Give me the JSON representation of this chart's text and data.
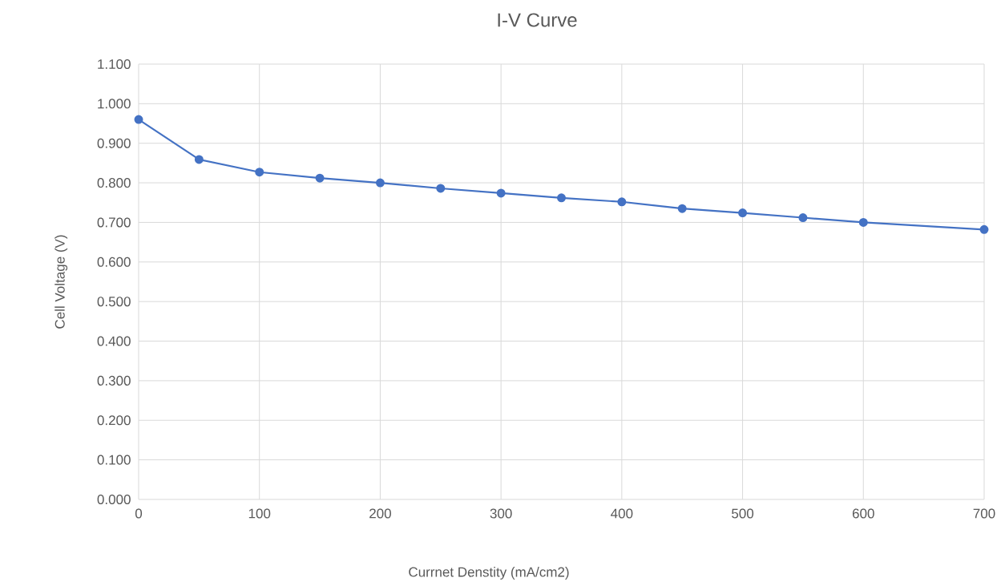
{
  "chart_data": {
    "type": "line",
    "title": "I-V Curve",
    "xlabel": "Currnet Denstity (mA/cm2)",
    "ylabel": "Cell Voltage (V)",
    "x": [
      0,
      50,
      100,
      150,
      200,
      250,
      300,
      350,
      400,
      450,
      500,
      550,
      600,
      700
    ],
    "values": [
      0.96,
      0.859,
      0.827,
      0.812,
      0.8,
      0.786,
      0.774,
      0.762,
      0.752,
      0.735,
      0.724,
      0.712,
      0.7,
      0.682
    ],
    "color": "#4472c4",
    "marker": "circle",
    "line_style": "solid",
    "grid": true,
    "xlim": [
      0,
      700
    ],
    "ylim": [
      0,
      1.1
    ],
    "xticks": [
      0,
      100,
      200,
      300,
      400,
      500,
      600,
      700
    ],
    "yticks": [
      {
        "value": 0,
        "label": "0.000"
      },
      {
        "value": 0.1,
        "label": "0.100"
      },
      {
        "value": 0.2,
        "label": "0.200"
      },
      {
        "value": 0.3,
        "label": "0.300"
      },
      {
        "value": 0.4,
        "label": "0.400"
      },
      {
        "value": 0.5,
        "label": "0.500"
      },
      {
        "value": 0.6,
        "label": "0.600"
      },
      {
        "value": 0.7,
        "label": "0.700"
      },
      {
        "value": 0.8,
        "label": "0.800"
      },
      {
        "value": 0.9,
        "label": "0.900"
      },
      {
        "value": 1.0,
        "label": "1.000"
      },
      {
        "value": 1.1,
        "label": "1.100"
      }
    ]
  }
}
